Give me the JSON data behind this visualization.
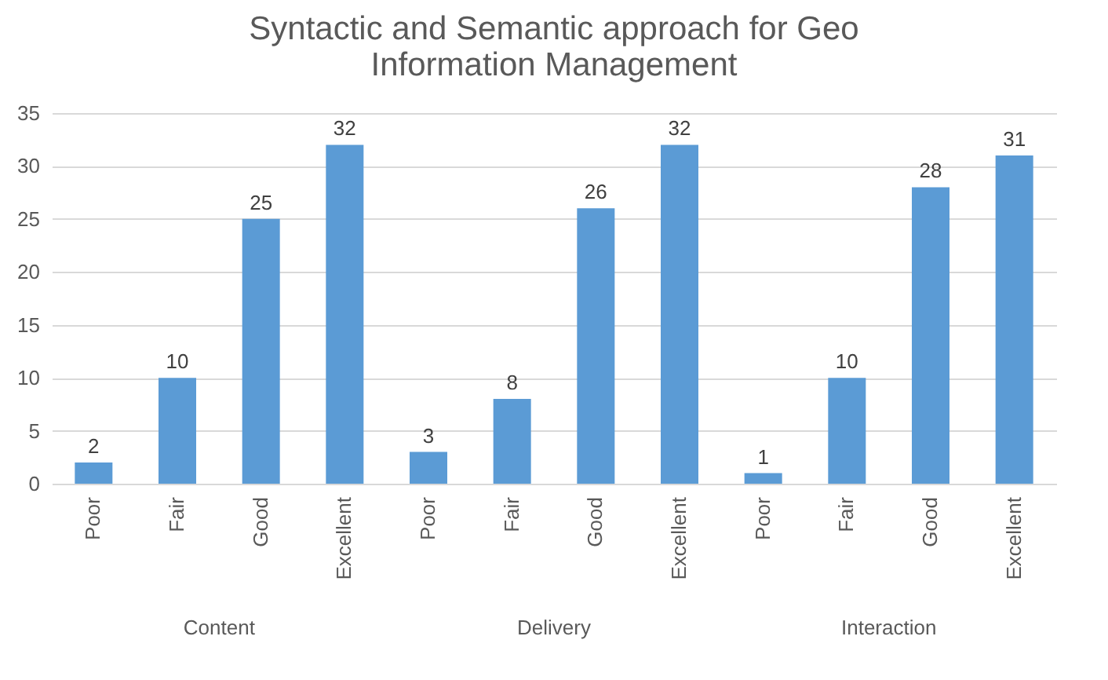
{
  "chart_data": {
    "type": "bar",
    "title": "Syntactic and Semantic approach for Geo Information Management",
    "categories": [
      "Poor",
      "Fair",
      "Good",
      "Excellent",
      "Poor",
      "Fair",
      "Good",
      "Excellent",
      "Poor",
      "Fair",
      "Good",
      "Excellent"
    ],
    "values": [
      2,
      10,
      25,
      32,
      3,
      8,
      26,
      32,
      1,
      10,
      28,
      31
    ],
    "color": "#5b9bd5",
    "annotations": [
      "Content",
      "Delivery",
      "Interaction"
    ],
    "ylim": [
      0,
      35
    ],
    "yticks": [
      0,
      5,
      10,
      15,
      20,
      25,
      30,
      35
    ],
    "grid": "y",
    "data_labels": true
  }
}
